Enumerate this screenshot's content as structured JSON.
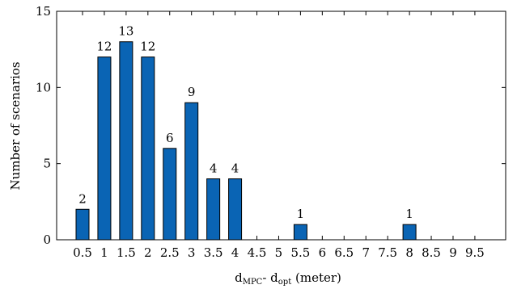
{
  "chart_data": {
    "type": "bar",
    "categories": [
      "0.5",
      "1",
      "1.5",
      "2",
      "2.5",
      "3",
      "3.5",
      "4",
      "4.5",
      "5",
      "5.5",
      "6",
      "6.5",
      "7",
      "7.5",
      "8",
      "8.5",
      "9",
      "9.5"
    ],
    "values": [
      2,
      12,
      13,
      12,
      6,
      9,
      4,
      4,
      0,
      0,
      1,
      0,
      0,
      0,
      0,
      1,
      0,
      0,
      0
    ],
    "data_labels": [
      "2",
      "12",
      "13",
      "12",
      "6",
      "9",
      "4",
      "4",
      "",
      "",
      "1",
      "",
      "",
      "",
      "",
      "1",
      "",
      "",
      ""
    ],
    "ylabel": "Number of scenarios",
    "xlabel": {
      "base1": "d",
      "sub1": "MPC",
      "middle": "- d",
      "sub2": "opt",
      "suffix": " (meter)"
    },
    "ylim": [
      0,
      15
    ],
    "yticks": [
      "0",
      "5",
      "10",
      "15"
    ],
    "grid": false,
    "legend": "none",
    "colors": {
      "bar_fill": "#0a64b4",
      "bar_stroke": "#000000"
    }
  }
}
